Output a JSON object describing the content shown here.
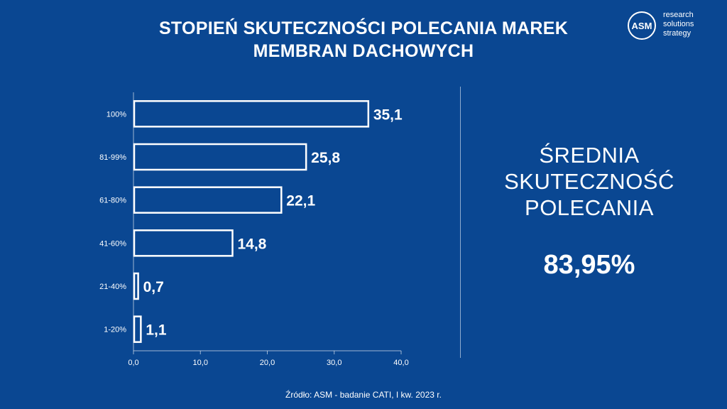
{
  "title": {
    "line1": "STOPIEŃ SKUTECZNOŚCI POLECANIA MAREK",
    "line2": "MEMBRAN DACHOWYCH"
  },
  "logo": {
    "mark": "ASM",
    "line1": "research",
    "line2": "solutions",
    "line3": "strategy"
  },
  "chart_data": {
    "type": "bar",
    "orientation": "horizontal",
    "categories": [
      "100%",
      "81-99%",
      "61-80%",
      "41-60%",
      "21-40%",
      "1-20%"
    ],
    "values": [
      35.1,
      25.8,
      22.1,
      14.8,
      0.7,
      1.1
    ],
    "value_labels": [
      "35,1",
      "25,8",
      "22,1",
      "14,8",
      "0,7",
      "1,1"
    ],
    "xlim": [
      0,
      40
    ],
    "x_ticks": [
      0,
      10,
      20,
      30,
      40
    ],
    "x_tick_labels": [
      "0,0",
      "10,0",
      "20,0",
      "30,0",
      "40,0"
    ],
    "grid": false,
    "bar_fill": "none",
    "bar_stroke": "#ffffff"
  },
  "summary": {
    "label_line1": "ŚREDNIA",
    "label_line2": "SKUTECZNOŚĆ",
    "label_line3": "POLECANIA",
    "value": "83,95%"
  },
  "source": "Źródło: ASM - badanie CATI, I kw. 2023 r.",
  "colors": {
    "background": "#0a4792",
    "foreground": "#ffffff"
  }
}
